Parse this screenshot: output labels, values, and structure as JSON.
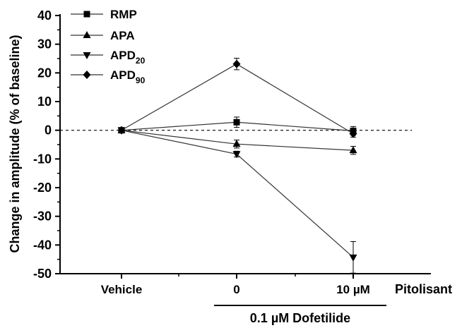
{
  "chart_data": {
    "type": "line",
    "categories": [
      "Vehicle",
      "0",
      "10 µM"
    ],
    "x_axis_title": "Pitolisant",
    "group_label": "0.1 µM Dofetilide",
    "ylabel": "Change in amplitude (% of baseline)",
    "ylim": [
      -50,
      40
    ],
    "yticks": [
      -50,
      -40,
      -30,
      -20,
      -10,
      0,
      10,
      20,
      30,
      40
    ],
    "reference_line": 0,
    "legend_position": "top-left",
    "series": [
      {
        "name": "RMP",
        "marker": "square",
        "values": [
          0,
          2.8,
          -0.2
        ],
        "error": [
          0.8,
          1.8,
          1.5
        ]
      },
      {
        "name": "APA",
        "marker": "triangle-up",
        "values": [
          0,
          -4.8,
          -7.0
        ],
        "error": [
          0.6,
          1.4,
          1.4
        ]
      },
      {
        "name": "APD20",
        "name_main": "APD",
        "name_sub": "20",
        "marker": "triangle-down",
        "values": [
          0,
          -8.3,
          -44.3
        ],
        "error": [
          0.6,
          1.0,
          5.5
        ]
      },
      {
        "name": "APD90",
        "name_main": "APD",
        "name_sub": "90",
        "marker": "diamond",
        "values": [
          0,
          23.1,
          -1.2
        ],
        "error": [
          0.5,
          2.0,
          1.2
        ]
      }
    ]
  }
}
